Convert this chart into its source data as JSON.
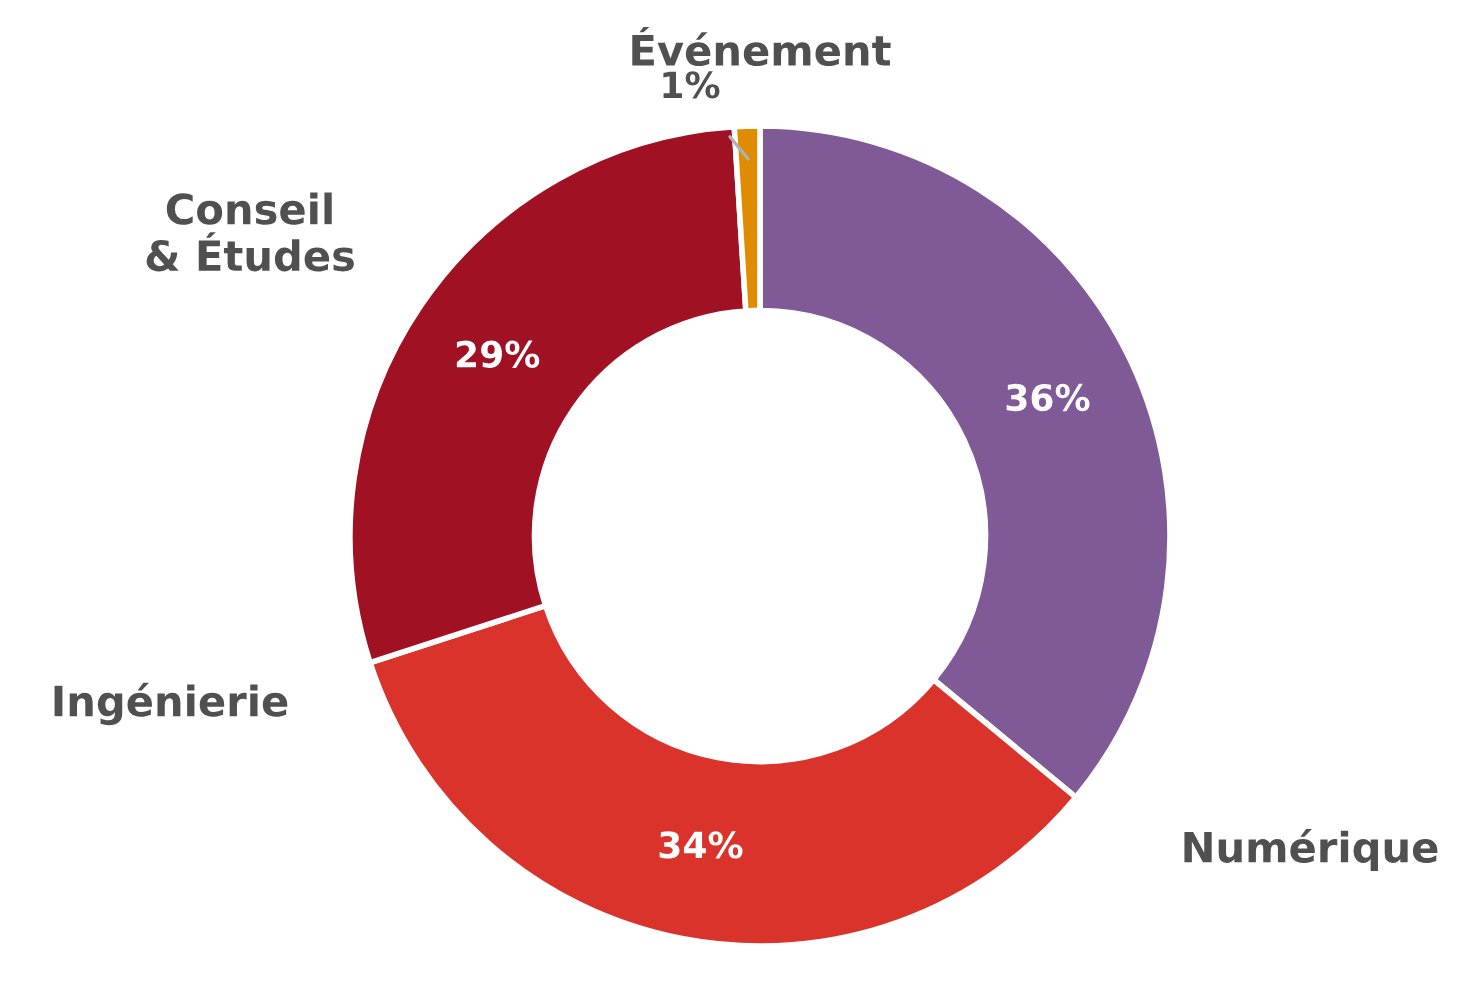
{
  "chart_data": {
    "type": "donut",
    "categories": [
      "Numérique",
      "Ingénierie",
      "Conseil\n& Études",
      "Événement"
    ],
    "values": [
      36,
      34,
      29,
      1
    ],
    "colors": [
      "#7f5a96",
      "#d9332b",
      "#a01223",
      "#e08c00"
    ],
    "value_labels": [
      "36%",
      "34%",
      "29%",
      "1%"
    ],
    "legend": false
  }
}
